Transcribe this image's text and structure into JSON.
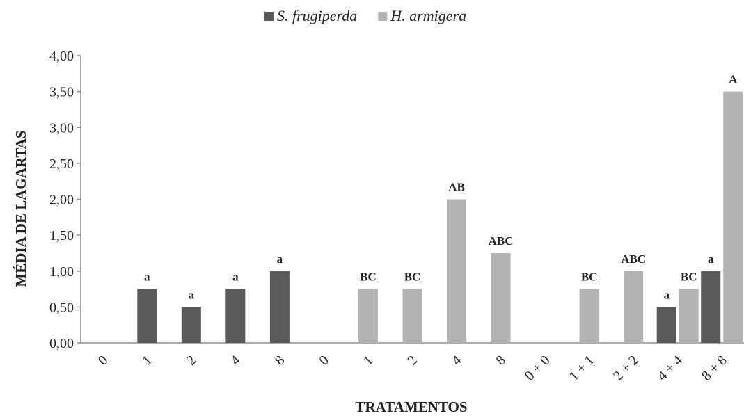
{
  "chart_data": {
    "type": "bar",
    "xlabel": "TRATAMENTOS",
    "ylabel": "MÉDIA DE LAGARTAS",
    "ylim": [
      0,
      4
    ],
    "yticks": [
      "0,00",
      "0,50",
      "1,00",
      "1,50",
      "2,00",
      "2,50",
      "3,00",
      "3,50",
      "4,00"
    ],
    "grid": false,
    "legend_position": "top-center",
    "categories": [
      "0",
      "1",
      "2",
      "4",
      "8",
      "0",
      "1",
      "2",
      "4",
      "8",
      "0 + 0",
      "1 + 1",
      "2 + 2",
      "4 + 4",
      "8 + 8"
    ],
    "series": [
      {
        "name": "S. frugiperda",
        "color": "#595959",
        "values": [
          0,
          0.75,
          0.5,
          0.75,
          1.0,
          null,
          null,
          null,
          null,
          null,
          null,
          null,
          null,
          0.5,
          1.0
        ],
        "letters": [
          "",
          "a",
          "a",
          "a",
          "a",
          "",
          "",
          "",
          "",
          "",
          "",
          "",
          "",
          "a",
          "a"
        ]
      },
      {
        "name": "H. armigera",
        "color": "#b3b3b3",
        "values": [
          null,
          null,
          null,
          null,
          null,
          0,
          0.75,
          0.75,
          2.0,
          1.25,
          0,
          0.75,
          1.0,
          0.75,
          3.5
        ],
        "letters": [
          "",
          "",
          "",
          "",
          "",
          "",
          "BC",
          "BC",
          "AB",
          "ABC",
          "",
          "BC",
          "ABC",
          "BC",
          "A"
        ]
      }
    ]
  }
}
